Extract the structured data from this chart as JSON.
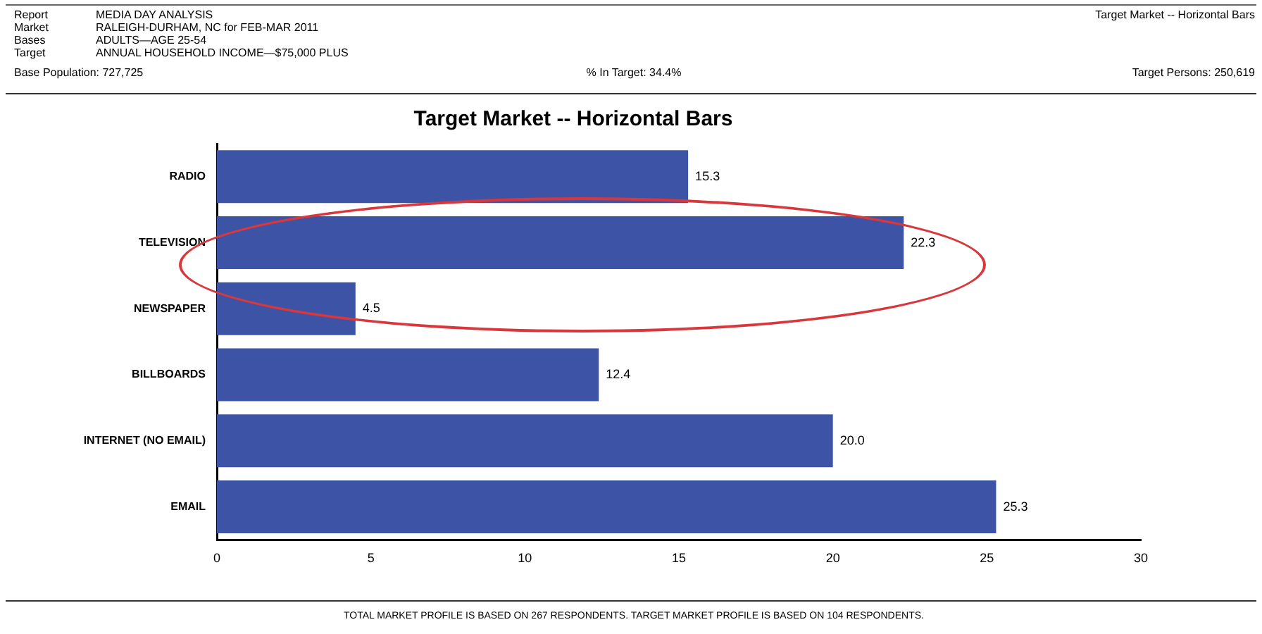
{
  "chart_data": {
    "type": "bar",
    "orientation": "horizontal",
    "title": "Target Market -- Horizontal Bars",
    "categories": [
      "RADIO",
      "TELEVISION",
      "NEWSPAPER",
      "BILLBOARDS",
      "INTERNET (NO EMAIL)",
      "EMAIL"
    ],
    "values": [
      15.3,
      22.3,
      4.5,
      12.4,
      20.0,
      25.3
    ],
    "value_labels": [
      "15.3",
      "22.3",
      "4.5",
      "12.4",
      "20.0",
      "25.3"
    ],
    "color": "#3d54a6",
    "xlim": [
      0,
      30
    ],
    "xticks": [
      0,
      5,
      10,
      15,
      20,
      25,
      30
    ],
    "grid": false,
    "legend": false,
    "annotations": [
      "Report",
      "MEDIA DAY ANALYSIS",
      "Market",
      "RALEIGH-DURHAM, NC for FEB-MAR 2011",
      "Bases",
      "ADULTS—AGE 25-54",
      "Target",
      "ANNUAL HOUSEHOLD INCOME—$75,000 PLUS",
      "Base Population: 727,725",
      "% In Target: 34.4%",
      "Target Persons: 250,619",
      "Target Market -- Horizontal Bars",
      "TOTAL MARKET PROFILE IS BASED ON 267 RESPONDENTS.  TARGET MARKET PROFILE IS BASED ON 104 RESPONDENTS."
    ]
  }
}
